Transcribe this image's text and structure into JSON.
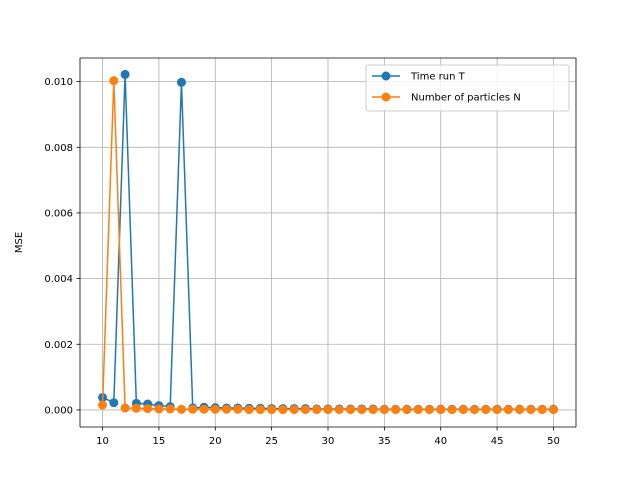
{
  "chart_data": {
    "type": "line",
    "title": "",
    "xlabel": "",
    "ylabel": "MSE",
    "xlim": [
      8.0,
      52.0
    ],
    "ylim": [
      -0.00052,
      0.01072
    ],
    "xticks": [
      10,
      15,
      20,
      25,
      30,
      35,
      40,
      45,
      50
    ],
    "yticks": [
      0.0,
      0.002,
      0.004,
      0.006,
      0.008,
      0.01
    ],
    "ytick_labels": [
      "0.000",
      "0.002",
      "0.004",
      "0.006",
      "0.008",
      "0.010"
    ],
    "grid": true,
    "legend_position": "upper right",
    "x": [
      10,
      11,
      12,
      13,
      14,
      15,
      16,
      17,
      18,
      19,
      20,
      21,
      22,
      23,
      24,
      25,
      26,
      27,
      28,
      29,
      30,
      31,
      32,
      33,
      34,
      35,
      36,
      37,
      38,
      39,
      40,
      41,
      42,
      43,
      44,
      45,
      46,
      47,
      48,
      49,
      50
    ],
    "series": [
      {
        "name": "Time run T",
        "color": "#1f77b4",
        "values": [
          0.00038,
          0.00022,
          0.01022,
          0.0002,
          0.00018,
          0.00013,
          0.0001,
          0.00998,
          6e-05,
          8e-05,
          7e-05,
          6e-05,
          6e-05,
          5e-05,
          5e-05,
          4e-05,
          4e-05,
          4e-05,
          4e-05,
          3e-05,
          3e-05,
          3e-05,
          3e-05,
          3e-05,
          3e-05,
          2e-05,
          2e-05,
          2e-05,
          2e-05,
          2e-05,
          2e-05,
          2e-05,
          2e-05,
          2e-05,
          2e-05,
          2e-05,
          2e-05,
          2e-05,
          2e-05,
          2e-05,
          2e-05
        ]
      },
      {
        "name": "Number of particles N",
        "color": "#ff7f0e",
        "values": [
          0.00015,
          0.01003,
          6e-05,
          5e-05,
          4e-05,
          3e-05,
          3e-05,
          2e-05,
          2e-05,
          2e-05,
          2e-05,
          2e-05,
          2e-05,
          1e-05,
          1e-05,
          1e-05,
          1e-05,
          1e-05,
          1e-05,
          1e-05,
          1e-05,
          1e-05,
          1e-05,
          1e-05,
          1e-05,
          1e-05,
          1e-05,
          1e-05,
          1e-05,
          1e-05,
          1e-05,
          1e-05,
          1e-05,
          1e-05,
          1e-05,
          1e-05,
          1e-05,
          1e-05,
          1e-05,
          1e-05,
          1e-05
        ]
      }
    ]
  }
}
